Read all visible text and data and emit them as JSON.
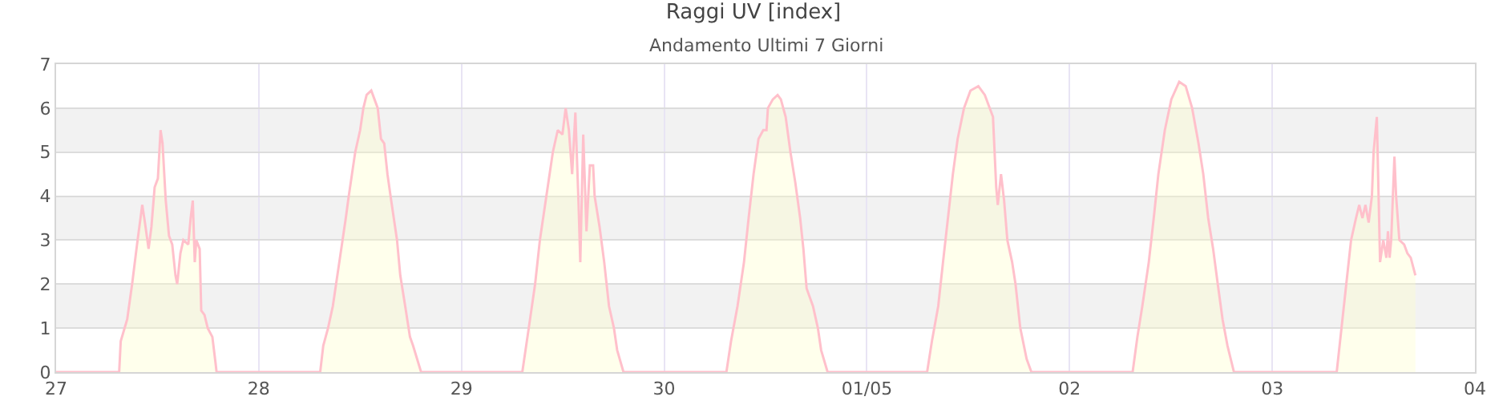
{
  "chart_data": {
    "type": "area",
    "title": "Raggi UV [index]",
    "subtitle": "Andamento Ultimi 7 Giorni",
    "xlim": [
      "--04-27",
      "--05-04"
    ],
    "xticks": [
      {
        "value": "--04-27",
        "label": "27"
      },
      {
        "value": "--04-28",
        "label": "28"
      },
      {
        "value": "--04-29",
        "label": "29"
      },
      {
        "value": "--04-30",
        "label": "30"
      },
      {
        "value": "--05-01",
        "label": "01/05"
      },
      {
        "value": "--05-02",
        "label": "02"
      },
      {
        "value": "--05-03",
        "label": "03"
      },
      {
        "value": "--05-04",
        "label": "04"
      }
    ],
    "ylim": [
      0,
      7
    ],
    "yticks": [
      0,
      1,
      2,
      3,
      4,
      5,
      6,
      7
    ],
    "grid": true,
    "bands": [
      {
        "axis": "y",
        "from": 1,
        "to": 2,
        "color": "#f2f2f2"
      },
      {
        "axis": "y",
        "from": 3,
        "to": 4,
        "color": "#f2f2f2"
      },
      {
        "axis": "y",
        "from": 5,
        "to": 6,
        "color": "#f2f2f2"
      }
    ],
    "series": [
      {
        "color": "#ffc0cb",
        "x": [
          "--04-27T00:00",
          "--04-27T07:28",
          "--04-27T07:39",
          "--04-27T08:25",
          "--04-27T09:00",
          "--04-27T09:35",
          "--04-27T10:12",
          "--04-27T10:31",
          "--04-27T10:57",
          "--04-27T11:17",
          "--04-27T11:40",
          "--04-27T12:03",
          "--04-27T12:22",
          "--04-27T12:36",
          "--04-27T12:59",
          "--04-27T13:22",
          "--04-27T13:45",
          "--04-27T14:08",
          "--04-27T14:20",
          "--04-27T14:43",
          "--04-27T15:04",
          "--04-27T15:39",
          "--04-27T15:56",
          "--04-27T16:11",
          "--04-27T16:25",
          "--04-27T16:36",
          "--04-27T17:00",
          "--04-27T17:11",
          "--04-27T17:34",
          "--04-27T17:57",
          "--04-27T18:30",
          "--04-27T18:53",
          "--04-27T19:00",
          "--04-28T07:16",
          "--04-28T07:38",
          "--04-28T08:12",
          "--04-28T08:46",
          "--04-28T09:09",
          "--04-28T09:32",
          "--04-28T09:55",
          "--04-28T10:18",
          "--04-28T10:39",
          "--04-28T11:02",
          "--04-28T11:25",
          "--04-28T12:00",
          "--04-28T12:23",
          "--04-28T12:46",
          "--04-28T13:19",
          "--04-28T13:42",
          "--04-28T14:05",
          "--04-28T14:28",
          "--04-28T14:51",
          "--04-28T15:14",
          "--04-28T15:36",
          "--04-28T15:59",
          "--04-28T16:22",
          "--04-28T16:45",
          "--04-28T17:20",
          "--04-28T17:54",
          "--04-28T18:16",
          "--04-28T19:13",
          "--04-29T07:12",
          "--04-29T07:58",
          "--04-29T08:43",
          "--04-29T09:17",
          "--04-29T10:03",
          "--04-29T10:49",
          "--04-29T11:24",
          "--04-29T11:57",
          "--04-29T12:20",
          "--04-29T12:43",
          "--04-29T13:06",
          "--04-29T13:29",
          "--04-29T13:52",
          "--04-29T14:04",
          "--04-29T14:25",
          "--04-29T14:48",
          "--04-29T15:12",
          "--04-29T15:35",
          "--04-29T15:46",
          "--04-29T16:21",
          "--04-29T16:54",
          "--04-29T17:28",
          "--04-29T18:03",
          "--04-29T18:26",
          "--04-29T19:11",
          "--04-30T07:22",
          "--04-30T07:55",
          "--04-30T08:41",
          "--04-30T09:27",
          "--04-30T10:00",
          "--04-30T10:35",
          "--04-30T11:10",
          "--04-30T11:44",
          "--04-30T12:07",
          "--04-30T12:17",
          "--04-30T12:52",
          "--04-30T13:26",
          "--04-30T13:49",
          "--04-30T14:23",
          "--04-30T14:57",
          "--04-30T15:32",
          "--04-30T16:06",
          "--04-30T16:29",
          "--04-30T16:52",
          "--04-30T17:37",
          "--04-30T18:12",
          "--04-30T18:35",
          "--04-30T19:21",
          "--05-01T07:08",
          "--05-01T07:42",
          "--05-01T08:27",
          "--05-01T09:01",
          "--05-01T09:36",
          "--05-01T10:11",
          "--05-01T10:45",
          "--05-01T11:30",
          "--05-01T12:16",
          "--05-01T13:12",
          "--05-01T13:58",
          "--05-01T14:56",
          "--05-01T15:19",
          "--05-01T15:30",
          "--05-01T15:53",
          "--05-01T16:15",
          "--05-01T16:38",
          "--05-01T17:12",
          "--05-01T17:36",
          "--05-01T18:10",
          "--05-01T18:55",
          "--05-01T19:29",
          "--05-02T07:28",
          "--05-02T08:02",
          "--05-02T08:37",
          "--05-02T09:23",
          "--05-02T09:58",
          "--05-02T10:31",
          "--05-02T11:17",
          "--05-02T12:03",
          "--05-02T12:59",
          "--05-02T13:45",
          "--05-02T14:31",
          "--05-02T15:16",
          "--05-02T15:50",
          "--05-02T16:25",
          "--05-02T17:00",
          "--05-02T17:33",
          "--05-02T18:07",
          "--05-02T18:42",
          "--05-02T19:28",
          "--05-03T07:38",
          "--05-03T08:12",
          "--05-03T08:46",
          "--05-03T09:20",
          "--05-03T09:55",
          "--05-03T10:18",
          "--05-03T10:41",
          "--05-03T11:02",
          "--05-03T11:25",
          "--05-03T11:48",
          "--05-03T12:00",
          "--05-03T12:23",
          "--05-03T12:46",
          "--05-03T13:09",
          "--05-03T13:31",
          "--05-03T13:42",
          "--05-03T13:54",
          "--05-03T14:05",
          "--05-03T14:28",
          "--05-03T14:40",
          "--05-03T15:03",
          "--05-03T15:37",
          "--05-03T16:00",
          "--05-03T16:24",
          "--05-03T16:57"
        ],
        "values": [
          0,
          0,
          0.7,
          1.2,
          2.0,
          2.9,
          3.8,
          3.4,
          2.8,
          3.3,
          4.2,
          4.4,
          5.5,
          5.2,
          3.9,
          3.1,
          2.9,
          2.2,
          2.0,
          2.7,
          3.0,
          2.9,
          3.5,
          3.9,
          2.5,
          3.0,
          2.8,
          1.4,
          1.3,
          1.0,
          0.8,
          0.2,
          0,
          0,
          0.6,
          1.0,
          1.5,
          2.0,
          2.5,
          3.0,
          3.5,
          4.0,
          4.5,
          5.0,
          5.5,
          6.0,
          6.3,
          6.4,
          6.2,
          6.0,
          5.3,
          5.2,
          4.5,
          4.0,
          3.5,
          3.0,
          2.2,
          1.5,
          0.8,
          0.6,
          0,
          0,
          1.0,
          2.0,
          3.0,
          4.0,
          5.0,
          5.5,
          5.4,
          6.0,
          5.5,
          4.5,
          5.9,
          3.8,
          2.5,
          5.4,
          3.2,
          4.7,
          4.7,
          4.0,
          3.3,
          2.5,
          1.5,
          1.0,
          0.5,
          0,
          0,
          0.7,
          1.5,
          2.5,
          3.5,
          4.5,
          5.3,
          5.5,
          5.5,
          6.0,
          6.2,
          6.3,
          6.2,
          5.8,
          5.0,
          4.3,
          3.5,
          2.8,
          1.9,
          1.5,
          1.0,
          0.5,
          0,
          0,
          0.7,
          1.5,
          2.5,
          3.5,
          4.5,
          5.3,
          6.0,
          6.4,
          6.5,
          6.3,
          5.8,
          4.2,
          3.8,
          4.5,
          3.9,
          3.0,
          2.5,
          2.0,
          1.0,
          0.3,
          0,
          0,
          0.8,
          1.5,
          2.5,
          3.5,
          4.5,
          5.5,
          6.2,
          6.6,
          6.5,
          6.0,
          5.2,
          4.5,
          3.5,
          2.8,
          2.0,
          1.2,
          0.6,
          0,
          0,
          1.0,
          2.0,
          3.0,
          3.5,
          3.8,
          3.5,
          3.8,
          3.4,
          4.0,
          5.0,
          5.8,
          2.5,
          3.0,
          2.6,
          3.2,
          2.6,
          3.0,
          4.9,
          4.0,
          3.0,
          2.9,
          2.7,
          2.6,
          2.2
        ]
      }
    ]
  }
}
